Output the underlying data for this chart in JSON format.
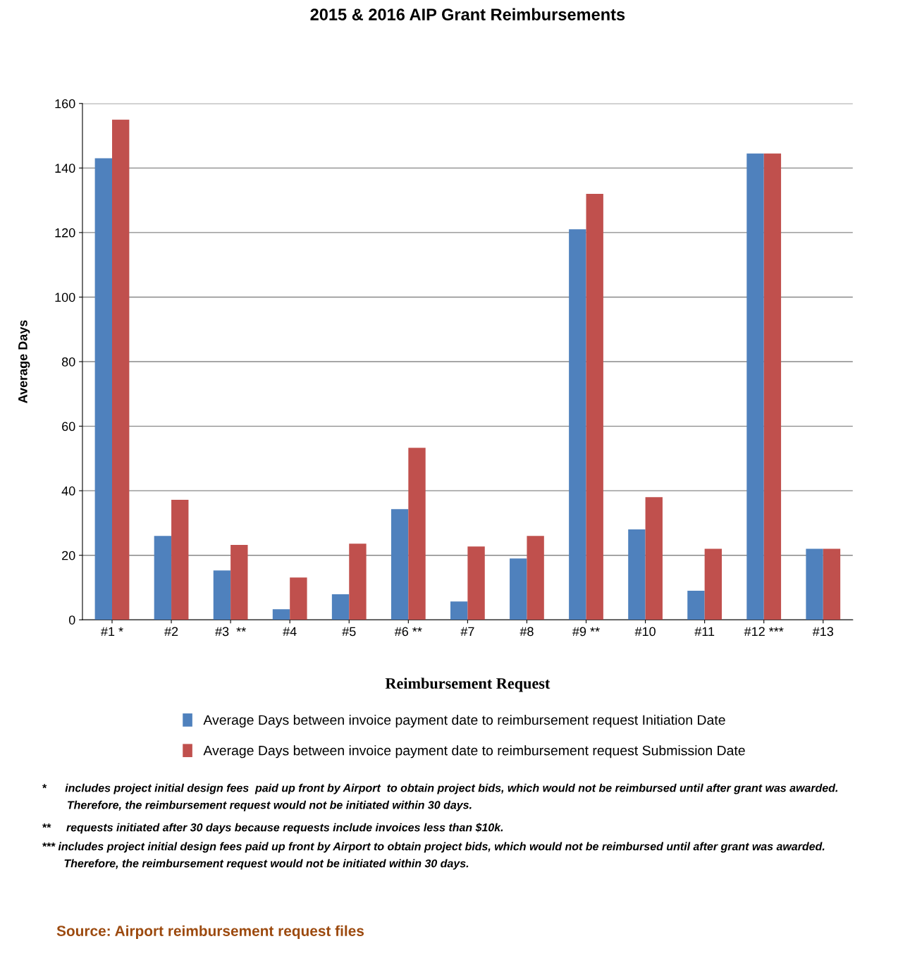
{
  "chart_data": {
    "type": "bar",
    "title": "2015 & 2016 AIP Grant Reimbursements",
    "xlabel": "Reimbursement Request",
    "ylabel": "Average Days",
    "categories": [
      "#1 *",
      "#2",
      "#3  **",
      "#4",
      "#5",
      "#6 **",
      "#7",
      "#8",
      "#9 **",
      "#10",
      "#11",
      "#12 ***",
      "#13"
    ],
    "series": [
      {
        "name": "Average Days between invoice payment date to reimbursement request Initiation Date",
        "color": "#4f81bd",
        "values": [
          143,
          26,
          15.3,
          3.3,
          7.9,
          34.3,
          5.7,
          19,
          121,
          28,
          9,
          144.5,
          22
        ]
      },
      {
        "name": "Average Days between invoice payment date to reimbursement request Submission Date",
        "color": "#c0504d",
        "values": [
          155,
          37.2,
          23.2,
          13.1,
          23.6,
          53.3,
          22.7,
          26,
          132,
          38,
          22,
          144.5,
          22
        ]
      }
    ],
    "ylim": [
      0,
      160
    ],
    "yticks": [
      0,
      20,
      40,
      60,
      80,
      100,
      120,
      140,
      160
    ],
    "grid": "y",
    "legend": "bottom",
    "annotations": [
      "*      includes project initial design fees  paid up front by Airport  to obtain project bids, which would not be reimbursed until after grant was awarded.\n        Therefore, the reimbursement request would not be initiated within 30 days.",
      "**     requests initiated after 30 days because requests include invoices less than $10k.",
      "*** includes project initial design fees paid up front by Airport to obtain project bids, which would not be reimbursed until after grant was awarded.\n       Therefore, the reimbursement request would not be initiated within 30 days.",
      "Source: Airport reimbursement request files"
    ]
  }
}
